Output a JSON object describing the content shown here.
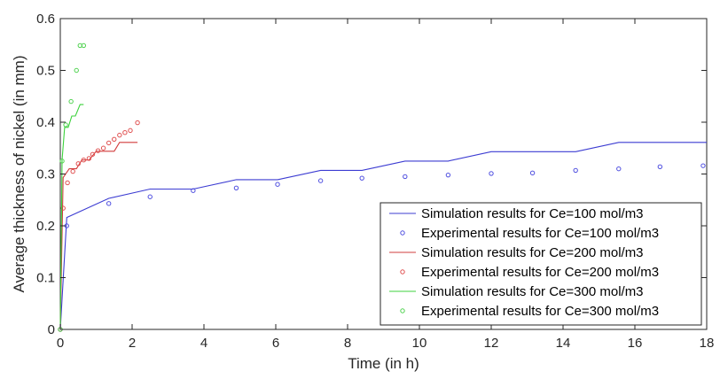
{
  "chart_data": {
    "type": "line",
    "title": "",
    "xlabel": "Time (in h)",
    "ylabel": "Average thickness of nickel (in mm)",
    "xlim": [
      0,
      18
    ],
    "ylim": [
      0,
      0.6
    ],
    "xticks": [
      0,
      2,
      4,
      6,
      8,
      10,
      12,
      14,
      16,
      18
    ],
    "yticks": [
      0,
      0.1,
      0.2,
      0.3,
      0.4,
      0.5,
      0.6
    ],
    "grid": false,
    "legend_position": "bottom-right",
    "series": [
      {
        "name": "Simulation results for Ce=100 mol/m3",
        "kind": "line",
        "color": "#3c3cd2",
        "x": [
          0,
          0.18,
          1.35,
          1.35,
          2.5,
          2.5,
          3.7,
          3.7,
          4.9,
          4.9,
          6.05,
          6.05,
          7.25,
          7.25,
          8.4,
          8.4,
          9.6,
          9.6,
          10.8,
          10.8,
          12.0,
          12.0,
          13.15,
          13.15,
          14.35,
          14.35,
          15.55,
          15.55,
          16.7,
          16.7,
          18
        ],
        "y": [
          0,
          0.216,
          0.253,
          0.253,
          0.271,
          0.271,
          0.271,
          0.271,
          0.289,
          0.289,
          0.289,
          0.289,
          0.307,
          0.307,
          0.307,
          0.307,
          0.325,
          0.325,
          0.325,
          0.325,
          0.343,
          0.343,
          0.343,
          0.343,
          0.343,
          0.343,
          0.361,
          0.361,
          0.361,
          0.361,
          0.361
        ]
      },
      {
        "name": "Experimental results for Ce=100 mol/m3",
        "kind": "scatter",
        "color": "#5050e0",
        "x": [
          0,
          0.18,
          1.35,
          2.5,
          3.7,
          4.9,
          6.05,
          7.25,
          8.4,
          9.6,
          10.8,
          12.0,
          13.15,
          14.35,
          15.55,
          16.7,
          17.9
        ],
        "y": [
          0,
          0.2,
          0.243,
          0.256,
          0.268,
          0.273,
          0.28,
          0.287,
          0.292,
          0.295,
          0.298,
          0.301,
          0.302,
          0.307,
          0.31,
          0.314,
          0.316
        ]
      },
      {
        "name": "Simulation results for Ce=200 mol/m3",
        "kind": "line",
        "color": "#d23c3c",
        "x": [
          0,
          0.08,
          0.25,
          0.45,
          0.6,
          0.8,
          1.0,
          1.2,
          1.35,
          1.5,
          1.65,
          1.8,
          2.0,
          2.15
        ],
        "y": [
          0,
          0.293,
          0.31,
          0.31,
          0.327,
          0.327,
          0.344,
          0.344,
          0.344,
          0.344,
          0.361,
          0.361,
          0.361,
          0.361
        ]
      },
      {
        "name": "Experimental results for Ce=200 mol/m3",
        "kind": "scatter",
        "color": "#e05050",
        "x": [
          0,
          0.08,
          0.2,
          0.35,
          0.5,
          0.65,
          0.8,
          0.9,
          1.05,
          1.2,
          1.35,
          1.5,
          1.65,
          1.8,
          1.95,
          2.15
        ],
        "y": [
          0,
          0.234,
          0.283,
          0.305,
          0.32,
          0.327,
          0.33,
          0.338,
          0.345,
          0.35,
          0.36,
          0.367,
          0.375,
          0.38,
          0.384,
          0.399
        ]
      },
      {
        "name": "Simulation results for Ce=300 mol/m3",
        "kind": "line",
        "color": "#3cd23c",
        "x": [
          0,
          0.05,
          0.12,
          0.22,
          0.32,
          0.42,
          0.55,
          0.65
        ],
        "y": [
          0,
          0.327,
          0.39,
          0.39,
          0.412,
          0.412,
          0.434,
          0.434
        ]
      },
      {
        "name": "Experimental results for Ce=300 mol/m3",
        "kind": "scatter",
        "color": "#50d250",
        "x": [
          0,
          0.05,
          0.15,
          0.3,
          0.45,
          0.55,
          0.65
        ],
        "y": [
          0,
          0.325,
          0.395,
          0.44,
          0.5,
          0.548,
          0.548
        ]
      }
    ]
  }
}
